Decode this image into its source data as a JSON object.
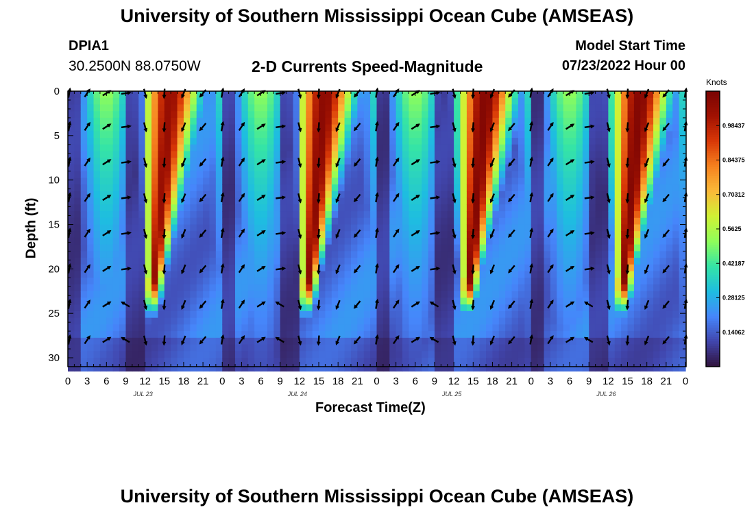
{
  "header": {
    "title": "University of Southern Mississippi Ocean Cube (AMSEAS)",
    "station": "DPIA1",
    "coords": "30.2500N  88.0750W",
    "subtitle": "2-D Currents Speed-Magnitude",
    "model_start_label": "Model Start Time",
    "model_start_value": "07/23/2022 Hour 00"
  },
  "footer": {
    "title": "University of Southern Mississippi Ocean Cube (AMSEAS)"
  },
  "chart_data": {
    "type": "heatmap",
    "title": "2-D Currents Speed-Magnitude",
    "xlabel": "Forecast Time(Z)",
    "ylabel": "Depth (ft)",
    "x_range_hours": [
      0,
      96
    ],
    "ylim": [
      0,
      31
    ],
    "y_inverted": true,
    "x_tick_labels": [
      "0",
      "3",
      "6",
      "9",
      "12",
      "15",
      "18",
      "21",
      "0",
      "3",
      "6",
      "9",
      "12",
      "15",
      "18",
      "21",
      "0",
      "3",
      "6",
      "9",
      "12",
      "15",
      "18",
      "21",
      "0",
      "3",
      "6",
      "9",
      "12",
      "15",
      "18",
      "21",
      "0"
    ],
    "y_tick_labels": [
      "0",
      "5",
      "10",
      "15",
      "20",
      "25",
      "30"
    ],
    "day_labels": [
      "JUL 23",
      "JUL 24",
      "JUL 25",
      "JUL 26"
    ],
    "colorbar": {
      "unit": "Knots",
      "tick_labels": [
        "0.14062",
        "0.28125",
        "0.42187",
        "0.5625",
        "0.70312",
        "0.84375",
        "0.98437"
      ],
      "range": [
        0,
        1.125
      ],
      "colors": [
        "#30123b",
        "#4146ad",
        "#4686fb",
        "#1ebde0",
        "#35e4a6",
        "#8ffe5a",
        "#d0f135",
        "#faba39",
        "#f6821f",
        "#d93807",
        "#a11202",
        "#7a0403"
      ]
    },
    "peaks": [
      {
        "time_hour": 16,
        "max_speed_knots": 1.05,
        "max_depth_ft": 21
      },
      {
        "time_hour": 40,
        "max_speed_knots": 1.08,
        "max_depth_ft": 21
      },
      {
        "time_hour": 65,
        "max_speed_knots": 1.1,
        "max_depth_ft": 21
      },
      {
        "time_hour": 89,
        "max_speed_knots": 1.1,
        "max_depth_ft": 21
      }
    ],
    "arrow_depths_ft": [
      0,
      4,
      8,
      12,
      16,
      20,
      24,
      28
    ],
    "arrow_interval_hours": 3
  }
}
